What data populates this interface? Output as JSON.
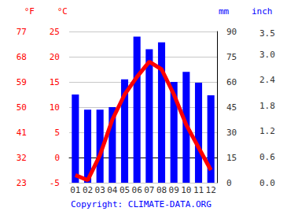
{
  "chart_data": {
    "type": "bar",
    "categories": [
      "01",
      "02",
      "03",
      "04",
      "05",
      "06",
      "07",
      "08",
      "09",
      "10",
      "11",
      "12"
    ],
    "series": [
      {
        "type": "bar",
        "color": "#0000ff",
        "axis": "y2",
        "values": [
          52.5,
          43.5,
          43.5,
          45,
          61.5,
          87,
          79.5,
          83.5,
          60,
          66,
          59.5,
          52
        ]
      },
      {
        "type": "line",
        "color": "#ff0000",
        "values": [
          -3.5,
          -4.5,
          0.5,
          7.5,
          12.5,
          16,
          19,
          17.5,
          12.5,
          6.5,
          2,
          -2.5
        ]
      }
    ],
    "ylabel": "°C",
    "ylim": [
      -5,
      25
    ],
    "yticks": [
      -5,
      0,
      5,
      10,
      15,
      20,
      25
    ],
    "y2label": "mm",
    "y2lim": [
      0,
      90
    ],
    "y2ticks": [
      0,
      15,
      30,
      45,
      60,
      75,
      90
    ],
    "y3label": "°F",
    "y3lim": [
      23,
      77
    ],
    "y3ticks": [
      23,
      32,
      41,
      50,
      59,
      68,
      77
    ],
    "y4label": "inch",
    "y4lim": [
      0,
      3.54
    ],
    "y4ticks": [
      {
        "value": 0,
        "label": "0.0"
      },
      {
        "value": 0.6,
        "label": "0.6"
      },
      {
        "value": 1.2,
        "label": "1.2"
      },
      {
        "value": 1.8,
        "label": "1.8"
      },
      {
        "value": 2.4,
        "label": "2.4"
      },
      {
        "value": 3.0,
        "label": "3.0"
      },
      {
        "value": 3.5,
        "label": "3.5"
      }
    ],
    "source": "Copyright: CLIMATE-DATA.ORG",
    "grid": true
  }
}
